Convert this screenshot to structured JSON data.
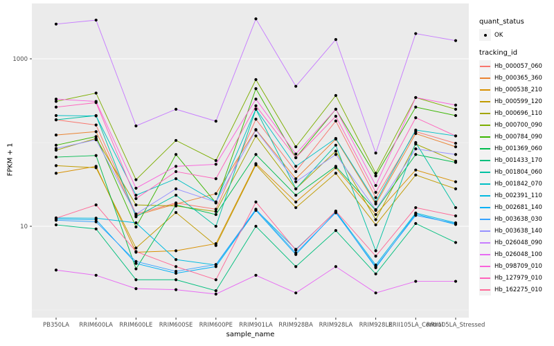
{
  "window": {
    "background": "#FFFFFF"
  },
  "figure": {
    "panel_bg": "#EBEBEB",
    "grid_major_color": "#FFFFFF",
    "grid_minor_color": "#FFFFFF",
    "tick_label_color": "#4D4D4D",
    "tick_mark_color": "#333333",
    "point_color": "#000000"
  },
  "axes": {
    "y": {
      "title": "FPKM + 1",
      "scale": "log10",
      "major_tick_labels": [
        "1000",
        "10"
      ],
      "major_tick_values": [
        1000,
        10
      ],
      "minor_tick_values": [
        100,
        1
      ]
    },
    "x": {
      "title": "sample_name"
    }
  },
  "legend": {
    "quant_status": {
      "title": "quant_status",
      "items": [
        {
          "label": "OK",
          "symbol": "point",
          "color": "#000000"
        }
      ]
    },
    "tracking": {
      "title": "tracking_id"
    }
  },
  "chart_data": {
    "type": "line",
    "title": "",
    "xlabel": "sample_name",
    "ylabel": "FPKM + 1",
    "y_scale": "log10",
    "ylim": [
      0.81,
      4580
    ],
    "y_major_ticks": [
      10,
      1000
    ],
    "y_minor_ticks": [
      1,
      100
    ],
    "grid": true,
    "legend_position": "right",
    "point_shape": "filled-circle",
    "point_color": "#000000",
    "categories": [
      "PB350LA",
      "RRIM600LA",
      "RRIM600LE",
      "RRIM600SE",
      "RRIM600PE",
      "RRIM901LA",
      "RRIM928BA",
      "RRIM928LA",
      "RRIM928LE",
      "RRII105LA_Control",
      "RRII105LA_Stressed"
    ],
    "series": [
      {
        "name": "Hb_000057_060",
        "color": "#F8766D",
        "values": [
          187,
          162,
          14,
          19,
          16,
          190,
          45,
          181,
          22,
          135,
          98
        ]
      },
      {
        "name": "Hb_000365_360",
        "color": "#EA8331",
        "values": [
          123,
          135,
          13.5,
          18.5,
          24.5,
          143,
          37,
          110,
          18.5,
          128,
          89
        ]
      },
      {
        "name": "Hb_000538_210",
        "color": "#D89000",
        "values": [
          43,
          52,
          4.9,
          5.1,
          6.2,
          56,
          19.5,
          50,
          13.8,
          47,
          34
        ]
      },
      {
        "name": "Hb_000599_120",
        "color": "#C09B00",
        "values": [
          53,
          50,
          5.5,
          14.6,
          5.9,
          54,
          16.7,
          43,
          10.4,
          41,
          28
        ]
      },
      {
        "name": "Hb_000696_110",
        "color": "#A3A500",
        "values": [
          81,
          112,
          18,
          17.5,
          15,
          120,
          28,
          79,
          12,
          96,
          60
        ]
      },
      {
        "name": "Hb_000700_090",
        "color": "#7CAE00",
        "values": [
          310,
          390,
          36,
          106,
          61,
          565,
          89,
          365,
          43,
          345,
          250
        ]
      },
      {
        "name": "Hb_000784_090",
        "color": "#39B600",
        "values": [
          93,
          118,
          9.8,
          72,
          19,
          440,
          66,
          250,
          40,
          265,
          210
        ]
      },
      {
        "name": "Hb_001369_060",
        "color": "#00BB4E",
        "values": [
          67,
          70,
          3.1,
          18,
          13.8,
          72,
          23.5,
          52,
          15.5,
          72,
          58
        ]
      },
      {
        "name": "Hb_001433_170",
        "color": "#00BF7D",
        "values": [
          10.4,
          9.3,
          2.3,
          2.3,
          1.7,
          10,
          3.3,
          8.9,
          2.7,
          10.8,
          6.4
        ]
      },
      {
        "name": "Hb_001804_060",
        "color": "#00C1A3",
        "values": [
          187,
          210,
          13,
          23.5,
          10,
          250,
          28,
          93,
          5.1,
          100,
          16.7
        ]
      },
      {
        "name": "Hb_001842_070",
        "color": "#00BFC4",
        "values": [
          210,
          208,
          23.5,
          37,
          19.5,
          252,
          52,
          112,
          19.5,
          141,
          120
        ]
      },
      {
        "name": "Hb_002391_110",
        "color": "#00BAE0",
        "values": [
          12.6,
          12.5,
          11,
          4.0,
          3.45,
          15.8,
          5.3,
          15,
          3.45,
          14.4,
          11
        ]
      },
      {
        "name": "Hb_002681_140",
        "color": "#00B0F6",
        "values": [
          12.2,
          12,
          3.6,
          2.75,
          3.3,
          15.5,
          4.6,
          14.8,
          3.2,
          14,
          10.5
        ]
      },
      {
        "name": "Hb_003638_030",
        "color": "#35A2FF",
        "values": [
          11.8,
          11.3,
          3.8,
          2.9,
          3.5,
          16,
          4.8,
          14.5,
          3.3,
          13.5,
          10.8
        ]
      },
      {
        "name": "Hb_003638_140",
        "color": "#9590FF",
        "values": [
          85,
          108,
          14,
          28,
          19.5,
          141,
          34,
          72,
          15.8,
          84,
          72
        ]
      },
      {
        "name": "Hb_026048_090",
        "color": "#C77CFF",
        "values": [
          2600,
          2900,
          158,
          250,
          180,
          3000,
          470,
          1700,
          75,
          2000,
          1650
        ]
      },
      {
        "name": "Hb_026048_100",
        "color": "#E76BF3",
        "values": [
          3.0,
          2.6,
          1.8,
          1.75,
          1.55,
          2.6,
          1.6,
          3.3,
          1.6,
          2.2,
          2.2
        ]
      },
      {
        "name": "Hb_098709_010",
        "color": "#FA62DB",
        "values": [
          330,
          310,
          28.5,
          52,
          55,
          330,
          73,
          250,
          30.7,
          345,
          280
        ]
      },
      {
        "name": "Hb_127979_010",
        "color": "#FF62BC",
        "values": [
          265,
          300,
          21.4,
          45,
          37,
          275,
          66,
          206,
          25.4,
          198,
          120
        ]
      },
      {
        "name": "Hb_162275_010",
        "color": "#FF6A98",
        "values": [
          12.5,
          18,
          5.0,
          3.3,
          2.3,
          19.5,
          5.2,
          15.2,
          4.4,
          16.7,
          13.3
        ]
      }
    ]
  }
}
